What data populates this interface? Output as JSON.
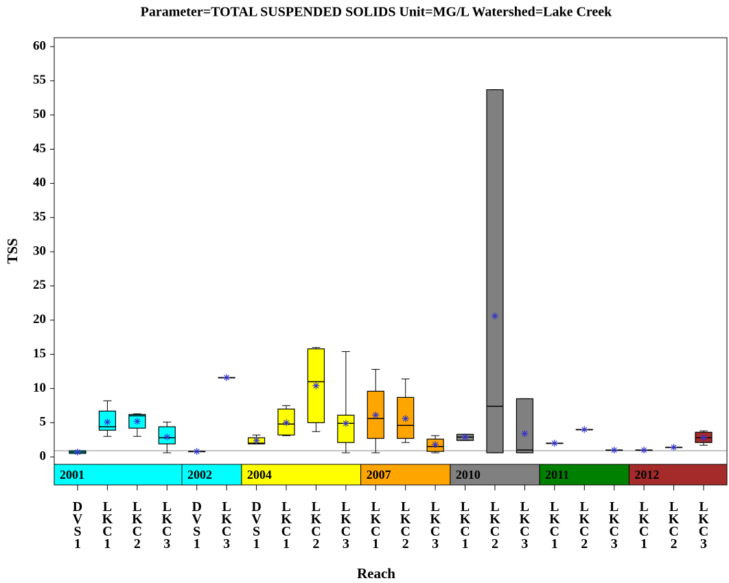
{
  "chart_data": {
    "type": "box",
    "title": "Parameter=TOTAL SUSPENDED SOLIDS Unit=MG/L Watershed=Lake Creek",
    "x_label": "Reach",
    "y_label": "TSS",
    "ylim": [
      -4.1,
      61.3
    ],
    "yticks": [
      0,
      5,
      10,
      15,
      20,
      25,
      30,
      35,
      40,
      45,
      50,
      55,
      60
    ],
    "reference_line": 0.9,
    "mean_color": "#3333cc",
    "groups": [
      {
        "name": "2001",
        "color": "#00ffff",
        "reaches": [
          "DVS1",
          "LKC1",
          "LKC2",
          "LKC3"
        ],
        "boxes": [
          {
            "low": 0.5,
            "q1": 0.5,
            "median": 0.7,
            "q3": 0.9,
            "high": 0.9,
            "mean": 0.7
          },
          {
            "low": 3.0,
            "q1": 3.9,
            "median": 4.4,
            "q3": 6.7,
            "high": 8.2,
            "mean": 5.1
          },
          {
            "low": 3.0,
            "q1": 4.2,
            "median": 6.0,
            "q3": 6.2,
            "high": 6.3,
            "mean": 5.2
          },
          {
            "low": 0.6,
            "q1": 1.9,
            "median": 2.8,
            "q3": 4.4,
            "high": 5.1,
            "mean": 2.9
          }
        ]
      },
      {
        "name": "2002",
        "color": "#00ffff",
        "reaches": [
          "DVS1",
          "LKC3"
        ],
        "boxes": [
          {
            "low": 0.8,
            "q1": 0.8,
            "median": 0.8,
            "q3": 0.8,
            "high": 0.8,
            "mean": 0.8
          },
          {
            "low": 11.6,
            "q1": 11.6,
            "median": 11.6,
            "q3": 11.6,
            "high": 11.6,
            "mean": 11.6
          }
        ]
      },
      {
        "name": "2004",
        "color": "#ffff00",
        "reaches": [
          "DVS1",
          "LKC1",
          "LKC2",
          "LKC3"
        ],
        "boxes": [
          {
            "low": 1.9,
            "q1": 1.9,
            "median": 2.0,
            "q3": 2.8,
            "high": 3.2,
            "mean": 2.4
          },
          {
            "low": 3.1,
            "q1": 3.2,
            "median": 4.8,
            "q3": 7.0,
            "high": 7.5,
            "mean": 5.0
          },
          {
            "low": 3.7,
            "q1": 5.0,
            "median": 11.0,
            "q3": 15.8,
            "high": 16.0,
            "mean": 10.4
          },
          {
            "low": 0.6,
            "q1": 2.1,
            "median": 4.9,
            "q3": 6.1,
            "high": 15.4,
            "mean": 4.9
          }
        ]
      },
      {
        "name": "2007",
        "color": "#ffa500",
        "reaches": [
          "LKC1",
          "LKC2",
          "LKC3"
        ],
        "boxes": [
          {
            "low": 0.6,
            "q1": 2.7,
            "median": 5.6,
            "q3": 9.6,
            "high": 12.8,
            "mean": 6.1
          },
          {
            "low": 2.1,
            "q1": 2.7,
            "median": 4.6,
            "q3": 8.7,
            "high": 11.4,
            "mean": 5.6
          },
          {
            "low": 0.6,
            "q1": 0.8,
            "median": 1.5,
            "q3": 2.6,
            "high": 3.1,
            "mean": 1.8
          }
        ]
      },
      {
        "name": "2010",
        "color": "#808080",
        "reaches": [
          "LKC1",
          "LKC2",
          "LKC3"
        ],
        "boxes": [
          {
            "low": 2.4,
            "q1": 2.4,
            "median": 2.9,
            "q3": 3.3,
            "high": 3.3,
            "mean": 2.9
          },
          {
            "low": 0.6,
            "q1": 0.6,
            "median": 7.4,
            "q3": 53.7,
            "high": 53.7,
            "mean": 20.6
          },
          {
            "low": 0.6,
            "q1": 0.6,
            "median": 1.0,
            "q3": 8.5,
            "high": 8.5,
            "mean": 3.4
          }
        ]
      },
      {
        "name": "2011",
        "color": "#008000",
        "reaches": [
          "LKC1",
          "LKC2",
          "LKC3"
        ],
        "boxes": [
          {
            "low": 2.0,
            "q1": 2.0,
            "median": 2.0,
            "q3": 2.0,
            "high": 2.0,
            "mean": 2.0
          },
          {
            "low": 4.0,
            "q1": 4.0,
            "median": 4.0,
            "q3": 4.0,
            "high": 4.0,
            "mean": 4.0
          },
          {
            "low": 1.0,
            "q1": 1.0,
            "median": 1.0,
            "q3": 1.0,
            "high": 1.0,
            "mean": 1.0
          }
        ]
      },
      {
        "name": "2012",
        "color": "#a52a2a",
        "reaches": [
          "LKC1",
          "LKC2",
          "LKC3"
        ],
        "boxes": [
          {
            "low": 1.0,
            "q1": 1.0,
            "median": 1.0,
            "q3": 1.0,
            "high": 1.0,
            "mean": 1.0
          },
          {
            "low": 1.4,
            "q1": 1.4,
            "median": 1.4,
            "q3": 1.4,
            "high": 1.4,
            "mean": 1.4
          },
          {
            "low": 1.7,
            "q1": 2.1,
            "median": 2.8,
            "q3": 3.6,
            "high": 3.8,
            "mean": 2.8
          }
        ]
      }
    ]
  }
}
